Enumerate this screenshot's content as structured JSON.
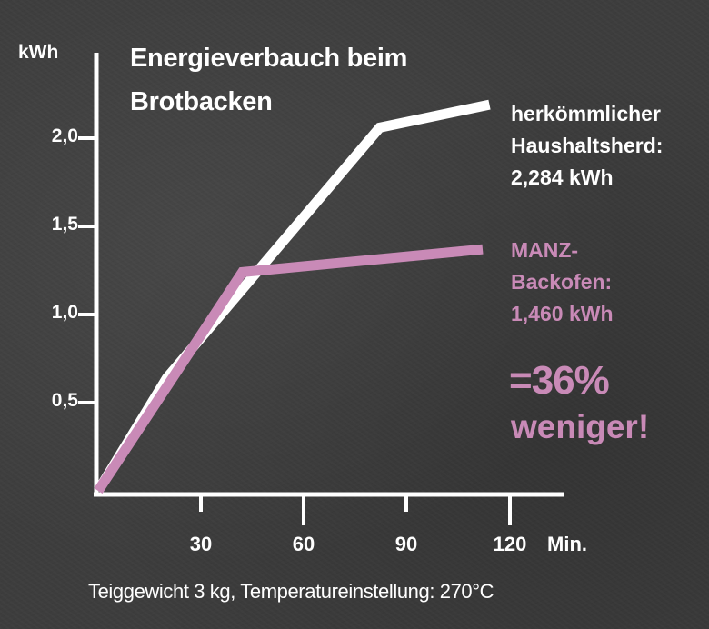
{
  "chart_data": {
    "type": "line",
    "title": "Energieverbauch beim Brotbacken",
    "title_lines": [
      "Energieverbauch beim",
      "Brotbacken"
    ],
    "xlabel": "Min.",
    "ylabel": "kWh",
    "xlim": [
      0,
      135
    ],
    "ylim": [
      0,
      2.3
    ],
    "x_ticks": [
      "30",
      "60",
      "90",
      "120"
    ],
    "y_ticks": [
      "0,5",
      "1,0",
      "1,5",
      "2,0"
    ],
    "grid": false,
    "series": [
      {
        "name": "herkömmlicher Haushaltsherd",
        "color": "#ffffff",
        "points": [
          [
            0,
            0
          ],
          [
            20,
            0.64
          ],
          [
            82,
            2.06
          ],
          [
            114,
            2.19
          ]
        ],
        "total_label": "2,284 kWh"
      },
      {
        "name": "MANZ-Backofen",
        "color": "#c98ab7",
        "points": [
          [
            0,
            0
          ],
          [
            42,
            1.24
          ],
          [
            112,
            1.37
          ]
        ],
        "total_label": "1,460 kWh"
      }
    ],
    "annotations": [
      "herkömmlicher Haushaltsherd: 2,284 kWh",
      "MANZ-Backofen: 1,460 kWh",
      "=36%",
      "weniger!"
    ],
    "caption": "Teiggewicht 3 kg, Temperatureinstellung: 270°C"
  },
  "labels": {
    "unit": "kWh",
    "title_line1": "Energieverbauch beim",
    "title_line2": "Brotbacken",
    "y_ticks": [
      "2,0",
      "1,5",
      "1,0",
      "0,5"
    ],
    "x_ticks": [
      "30",
      "60",
      "90",
      "120"
    ],
    "x_unit": "Min.",
    "white_line1": "herkömmlicher",
    "white_line2": "Haushaltsherd:",
    "white_line3": "2,284 kWh",
    "pink_line1": "MANZ-",
    "pink_line2": "Backofen:",
    "pink_line3": "1,460 kWh",
    "percent": "=36%",
    "less": "weniger!",
    "caption": "Teiggewicht 3 kg, Temperatureinstellung: 270°C"
  },
  "colors": {
    "background": "#3d3d3d",
    "conventional": "#ffffff",
    "manz": "#c98ab7"
  }
}
